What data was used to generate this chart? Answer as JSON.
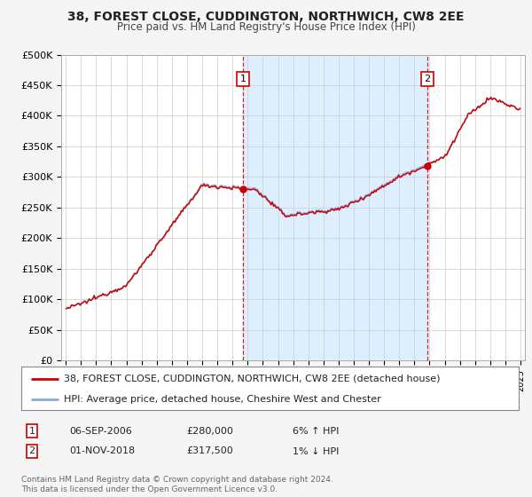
{
  "title": "38, FOREST CLOSE, CUDDINGTON, NORTHWICH, CW8 2EE",
  "subtitle": "Price paid vs. HM Land Registry's House Price Index (HPI)",
  "ylim": [
    0,
    500000
  ],
  "yticks": [
    0,
    50000,
    100000,
    150000,
    200000,
    250000,
    300000,
    350000,
    400000,
    450000,
    500000
  ],
  "ytick_labels": [
    "£0",
    "£50K",
    "£100K",
    "£150K",
    "£200K",
    "£250K",
    "£300K",
    "£350K",
    "£400K",
    "£450K",
    "£500K"
  ],
  "xlim_start": 1994.7,
  "xlim_end": 2025.3,
  "purchase1_x": 2006.68,
  "purchase1_y": 280000,
  "purchase2_x": 2018.84,
  "purchase2_y": 317500,
  "purchase1_date": "06-SEP-2006",
  "purchase1_price": "£280,000",
  "purchase1_hpi": "6% ↑ HPI",
  "purchase2_date": "01-NOV-2018",
  "purchase2_price": "£317,500",
  "purchase2_hpi": "1% ↓ HPI",
  "line1_color": "#cc0000",
  "line2_color": "#88aadd",
  "shade_color": "#ddeeff",
  "line1_label": "38, FOREST CLOSE, CUDDINGTON, NORTHWICH, CW8 2EE (detached house)",
  "line2_label": "HPI: Average price, detached house, Cheshire West and Chester",
  "footer": "Contains HM Land Registry data © Crown copyright and database right 2024.\nThis data is licensed under the Open Government Licence v3.0.",
  "bg_color": "#f5f5f5",
  "plot_bg_color": "#ffffff",
  "grid_color": "#cccccc",
  "title_fontsize": 10,
  "subtitle_fontsize": 8.5,
  "tick_fontsize": 8,
  "legend_fontsize": 8,
  "annot_fontsize": 8
}
